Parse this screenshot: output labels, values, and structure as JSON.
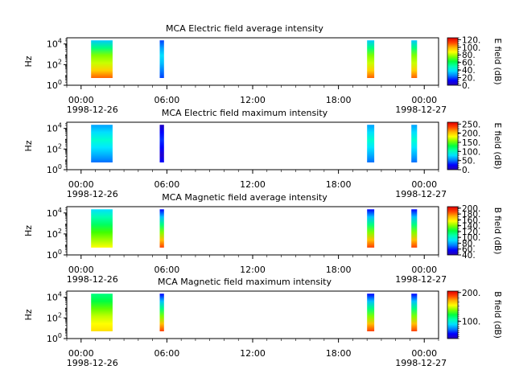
{
  "chart_data": [
    {
      "type": "heatmap",
      "title": "MCA  Electric field average intensity",
      "ylabel": "Hz",
      "colorbar_label": "E field (dB)",
      "colorbar_ticks": [
        "0.",
        "20.",
        "40.",
        "60.",
        "80.",
        "100.",
        "120."
      ],
      "colorbar_range": [
        0,
        125
      ],
      "x_ticks": [
        "00:00",
        "06:00",
        "12:00",
        "18:00",
        "00:00"
      ],
      "x_dates": [
        "1998-12-26",
        "1998-12-27"
      ],
      "x_range_hours": [
        -1,
        25
      ],
      "y_scale": "log",
      "y_ticks": [
        "10^0",
        "10^2",
        "10^4"
      ],
      "segments": [
        {
          "start_h": 0.7,
          "end_h": 2.2,
          "pattern": "mixed"
        },
        {
          "start_h": 5.5,
          "end_h": 5.8,
          "pattern": "cool"
        },
        {
          "start_h": 20.0,
          "end_h": 20.5,
          "pattern": "mixed"
        },
        {
          "start_h": 23.1,
          "end_h": 23.5,
          "pattern": "mixed"
        }
      ]
    },
    {
      "type": "heatmap",
      "title": "MCA  Electric field maximum intensity",
      "ylabel": "Hz",
      "colorbar_label": "E field (dB)",
      "colorbar_ticks": [
        "0.",
        "50.",
        "100.",
        "150.",
        "200.",
        "250."
      ],
      "colorbar_range": [
        0,
        260
      ],
      "x_ticks": [
        "00:00",
        "06:00",
        "12:00",
        "18:00",
        "00:00"
      ],
      "x_dates": [
        "1998-12-26",
        "1998-12-27"
      ],
      "x_range_hours": [
        -1,
        25
      ],
      "y_scale": "log",
      "y_ticks": [
        "10^0",
        "10^2",
        "10^4"
      ],
      "segments": [
        {
          "start_h": 0.7,
          "end_h": 2.2,
          "pattern": "cyan"
        },
        {
          "start_h": 5.5,
          "end_h": 5.8,
          "pattern": "blue"
        },
        {
          "start_h": 20.0,
          "end_h": 20.5,
          "pattern": "cyan"
        },
        {
          "start_h": 23.1,
          "end_h": 23.5,
          "pattern": "cyan"
        }
      ]
    },
    {
      "type": "heatmap",
      "title": "MCA  Magnetic field average intensity",
      "ylabel": "Hz",
      "colorbar_label": "B field (dB)",
      "colorbar_ticks": [
        "40.",
        "60.",
        "80.",
        "100.",
        "120.",
        "140.",
        "160.",
        "180.",
        "200."
      ],
      "colorbar_range": [
        40,
        205
      ],
      "x_ticks": [
        "00:00",
        "06:00",
        "12:00",
        "18:00",
        "00:00"
      ],
      "x_dates": [
        "1998-12-26",
        "1998-12-27"
      ],
      "x_range_hours": [
        -1,
        25
      ],
      "y_scale": "log",
      "y_ticks": [
        "10^0",
        "10^2",
        "10^4"
      ],
      "segments": [
        {
          "start_h": 0.7,
          "end_h": 2.2,
          "pattern": "grad"
        },
        {
          "start_h": 5.5,
          "end_h": 5.8,
          "pattern": "gradhot"
        },
        {
          "start_h": 20.0,
          "end_h": 20.5,
          "pattern": "gradhot"
        },
        {
          "start_h": 23.1,
          "end_h": 23.5,
          "pattern": "gradhot"
        }
      ]
    },
    {
      "type": "heatmap",
      "title": "MCA  Magnetic field maximum intensity",
      "ylabel": "Hz",
      "colorbar_label": "B field (dB)",
      "colorbar_ticks": [
        "100.",
        "200."
      ],
      "colorbar_range": [
        40,
        205
      ],
      "x_ticks": [
        "00:00",
        "06:00",
        "12:00",
        "18:00",
        "00:00"
      ],
      "x_dates": [
        "1998-12-26",
        "1998-12-27"
      ],
      "x_range_hours": [
        -1,
        25
      ],
      "y_scale": "log",
      "y_ticks": [
        "10^0",
        "10^2",
        "10^4"
      ],
      "segments": [
        {
          "start_h": 0.7,
          "end_h": 2.2,
          "pattern": "gradwarm"
        },
        {
          "start_h": 5.5,
          "end_h": 5.8,
          "pattern": "gradhot"
        },
        {
          "start_h": 20.0,
          "end_h": 20.5,
          "pattern": "gradhot"
        },
        {
          "start_h": 23.1,
          "end_h": 23.5,
          "pattern": "gradhot"
        }
      ]
    }
  ]
}
